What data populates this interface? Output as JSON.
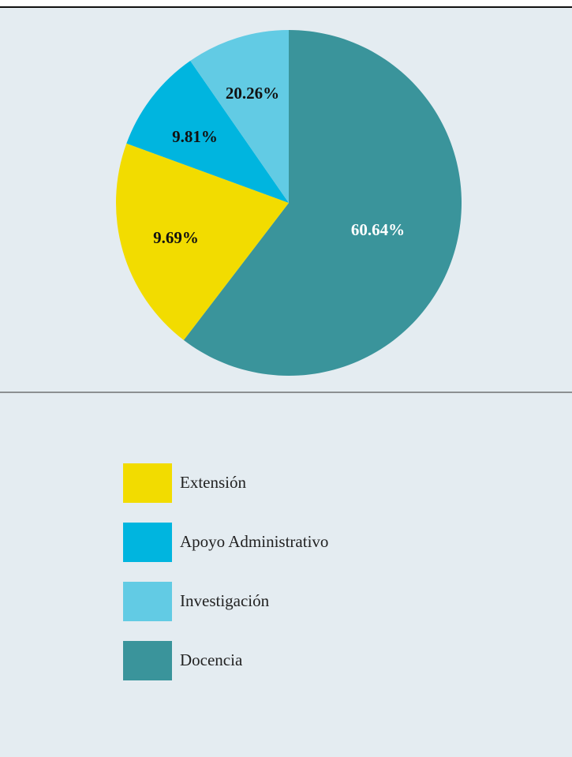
{
  "chart_data": {
    "type": "pie",
    "categories": [
      "Extensión",
      "Apoyo Administrativo",
      "Investigación",
      "Docencia"
    ],
    "values": [
      20.26,
      9.81,
      9.69,
      60.64
    ],
    "value_labels": [
      "20.26%",
      "9.81%",
      "9.69%",
      "60.64%"
    ],
    "colors": [
      "#f2dc00",
      "#00b5df",
      "#62cbe4",
      "#3a949b"
    ]
  }
}
